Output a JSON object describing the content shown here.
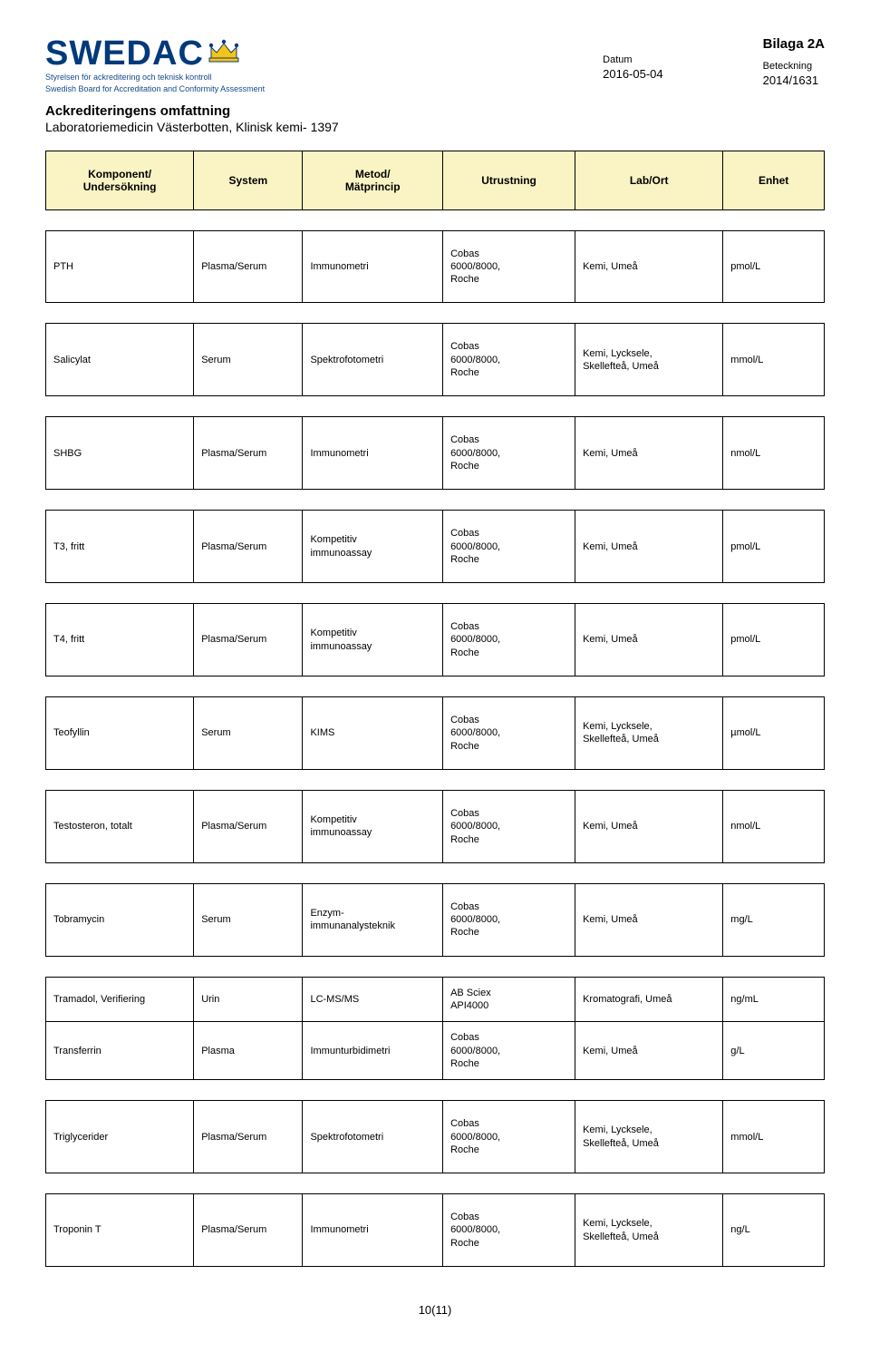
{
  "header": {
    "logo_main": "SWEDAC",
    "logo_sub1": "Styrelsen för ackreditering och teknisk kontroll",
    "logo_sub2": "Swedish Board for Accreditation and Conformity Assessment",
    "bilaga": "Bilaga 2A",
    "datum_label": "Datum",
    "datum_value": "2016-05-04",
    "beteckning_label": "Beteckning",
    "beteckning_value": "2014/1631",
    "title": "Ackrediteringens omfattning",
    "subtitle": "Laboratoriemedicin Västerbotten, Klinisk kemi- 1397"
  },
  "columns": {
    "c1a": "Komponent/",
    "c1b": "Undersökning",
    "c2": "System",
    "c3a": "Metod/",
    "c3b": "Mätprincip",
    "c4": "Utrustning",
    "c5": "Lab/Ort",
    "c6": "Enhet"
  },
  "rows": [
    {
      "c1": "PTH",
      "c2": "Plasma/Serum",
      "c3": "Immunometri",
      "c4": "Cobas 6000/8000, Roche",
      "c5": "Kemi, Umeå",
      "c6": "pmol/L",
      "group": 0
    },
    {
      "c1": "Salicylat",
      "c2": "Serum",
      "c3": "Spektrofotometri",
      "c4": "Cobas 6000/8000, Roche",
      "c5": "Kemi, Lycksele, Skellefteå, Umeå",
      "c6": "mmol/L",
      "group": 1
    },
    {
      "c1": "SHBG",
      "c2": "Plasma/Serum",
      "c3": "Immunometri",
      "c4": "Cobas 6000/8000, Roche",
      "c5": "Kemi, Umeå",
      "c6": "nmol/L",
      "group": 2
    },
    {
      "c1": "T3, fritt",
      "c2": "Plasma/Serum",
      "c3": "Kompetitiv immunoassay",
      "c4": "Cobas 6000/8000, Roche",
      "c5": "Kemi, Umeå",
      "c6": "pmol/L",
      "group": 3
    },
    {
      "c1": "T4, fritt",
      "c2": "Plasma/Serum",
      "c3": "Kompetitiv immunoassay",
      "c4": "Cobas 6000/8000, Roche",
      "c5": "Kemi, Umeå",
      "c6": "pmol/L",
      "group": 4
    },
    {
      "c1": "Teofyllin",
      "c2": "Serum",
      "c3": "KIMS",
      "c4": "Cobas 6000/8000, Roche",
      "c5": "Kemi, Lycksele, Skellefteå, Umeå",
      "c6": "µmol/L",
      "group": 5
    },
    {
      "c1": "Testosteron, totalt",
      "c2": "Plasma/Serum",
      "c3": "Kompetitiv immunoassay",
      "c4": "Cobas 6000/8000, Roche",
      "c5": "Kemi, Umeå",
      "c6": "nmol/L",
      "group": 6
    },
    {
      "c1": "Tobramycin",
      "c2": "Serum",
      "c3": "Enzym-immunanalysteknik",
      "c4": "Cobas 6000/8000, Roche",
      "c5": "Kemi, Umeå",
      "c6": "mg/L",
      "group": 7
    },
    {
      "c1": "Tramadol, Verifiering",
      "c2": "Urin",
      "c3": "LC-MS/MS",
      "c4": "AB Sciex API4000",
      "c5": "Kromatografi, Umeå",
      "c6": "ng/mL",
      "group": 8
    },
    {
      "c1": "Transferrin",
      "c2": "Plasma",
      "c3": "Immunturbidimetri",
      "c4": "Cobas 6000/8000, Roche",
      "c5": "Kemi, Umeå",
      "c6": "g/L",
      "group": 8
    },
    {
      "c1": "Triglycerider",
      "c2": "Plasma/Serum",
      "c3": "Spektrofotometri",
      "c4": "Cobas 6000/8000, Roche",
      "c5": "Kemi, Lycksele, Skellefteå, Umeå",
      "c6": "mmol/L",
      "group": 9
    },
    {
      "c1": "Troponin T",
      "c2": "Plasma/Serum",
      "c3": "Immunometri",
      "c4": "Cobas 6000/8000, Roche",
      "c5": "Kemi, Lycksele, Skellefteå, Umeå",
      "c6": "ng/L",
      "group": 10
    }
  ],
  "footer": "10(11)",
  "colors": {
    "header_bg": "#faf4c4",
    "logo_blue": "#003a7a",
    "border": "#000000"
  }
}
